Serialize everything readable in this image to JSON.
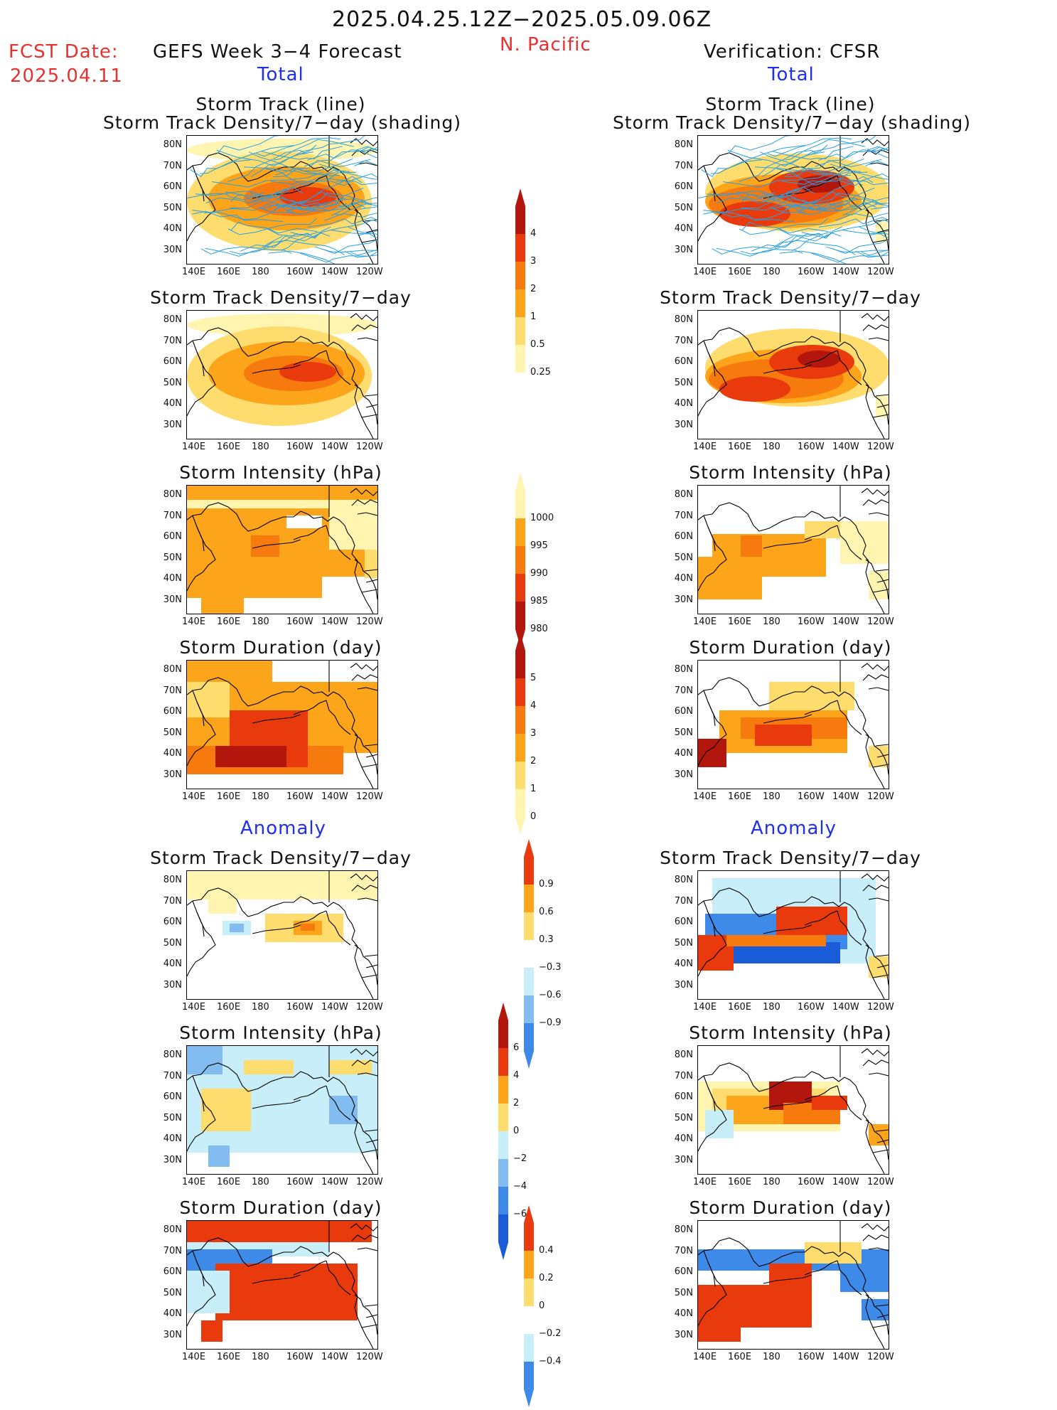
{
  "header": {
    "period": "2025.04.25.12Z−2025.05.09.06Z",
    "region": "N. Pacific",
    "fcst_label": "FCST Date:",
    "fcst_date": "2025.04.11",
    "left_title": "GEFS Week 3−4 Forecast",
    "right_title": "Verification: CFSR",
    "total_left": "Total",
    "total_right": "Total",
    "anomaly_left": "Anomaly",
    "anomaly_right": "Anomaly"
  },
  "panels": {
    "p1_line1": "Storm Track (line)",
    "p1_line2": "Storm Track Density/7−day (shading)",
    "density": "Storm Track Density/7−day",
    "intensity": "Storm Intensity (hPa)",
    "duration": "Storm Duration (day)"
  },
  "axes": {
    "lat": [
      "80N",
      "70N",
      "60N",
      "50N",
      "40N",
      "30N"
    ],
    "lon": [
      "140E",
      "160E",
      "180",
      "160W",
      "140W",
      "120W"
    ]
  },
  "colorbars": {
    "density_total": [
      "4",
      "3",
      "2",
      "1",
      "0.5",
      "0.25"
    ],
    "intensity_total": [
      "1000",
      "995",
      "990",
      "985",
      "980"
    ],
    "duration_total": [
      "5",
      "4",
      "3",
      "2",
      "1",
      "0"
    ],
    "density_anom": [
      "0.9",
      "0.6",
      "0.3",
      "−0.3",
      "−0.6",
      "−0.9"
    ],
    "intensity_anom": [
      "6",
      "4",
      "2",
      "0",
      "−2",
      "−4",
      "−6"
    ],
    "duration_anom": [
      "0.4",
      "0.2",
      "0",
      "−0.2",
      "−0.4"
    ]
  },
  "colors": {
    "light_yellow": "#fff5b0",
    "yellow": "#fedc6e",
    "orange": "#fca41a",
    "dark_orange": "#f77a0e",
    "red": "#e83a0c",
    "dark_red": "#b2160c",
    "light_blue": "#c8eefa",
    "mid_blue": "#82bcf0",
    "blue": "#3d8ae8",
    "dark_blue": "#1a5cd8",
    "track_line": "#2aa0e0"
  }
}
